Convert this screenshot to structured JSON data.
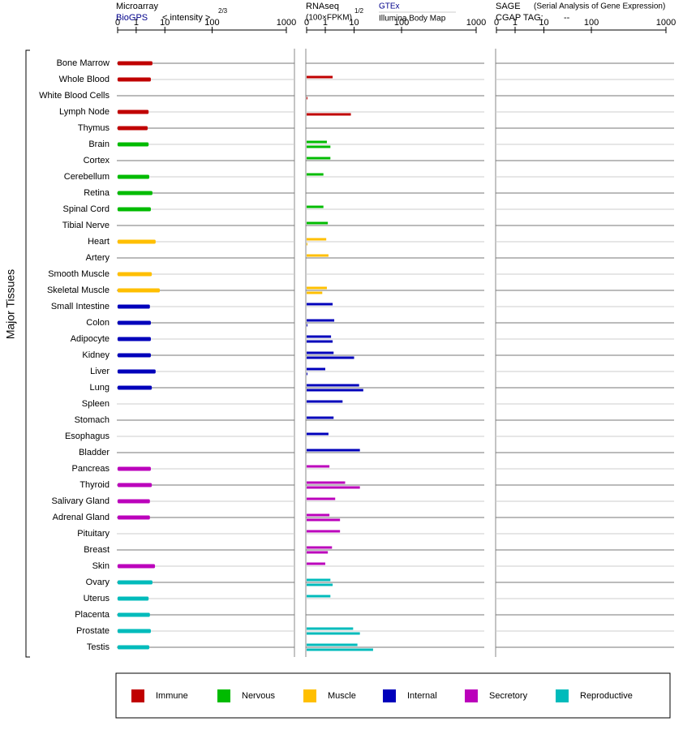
{
  "chart_data": [
    {
      "type": "bar",
      "title": "Microarray",
      "subtitle": "BioGPS",
      "axis_label": "< intensity >",
      "axis_label_power": "2/3",
      "ylabel": "Major Tissues",
      "categories": [
        "Bone Marrow",
        "Whole Blood",
        "White Blood Cells",
        "Lymph Node",
        "Thymus",
        "Brain",
        "Cortex",
        "Cerebellum",
        "Retina",
        "Spinal Cord",
        "Tibial Nerve",
        "Heart",
        "Artery",
        "Smooth Muscle",
        "Skeletal Muscle",
        "Small Intestine",
        "Colon",
        "Adipocyte",
        "Kidney",
        "Liver",
        "Lung",
        "Spleen",
        "Stomach",
        "Esophagus",
        "Bladder",
        "Pancreas",
        "Thyroid",
        "Salivary Gland",
        "Adrenal Gland",
        "Pituitary",
        "Breast",
        "Skin",
        "Ovary",
        "Uterus",
        "Placenta",
        "Prostate",
        "Testis"
      ],
      "colors": [
        "#c00000",
        "#c00000",
        "#c00000",
        "#c00000",
        "#c00000",
        "#00bb00",
        "#00bb00",
        "#00bb00",
        "#00bb00",
        "#00bb00",
        "#00bb00",
        "#ffbf00",
        "#ffbf00",
        "#ffbf00",
        "#ffbf00",
        "#0000bb",
        "#0000bb",
        "#0000bb",
        "#0000bb",
        "#0000bb",
        "#0000bb",
        "#0000bb",
        "#0000bb",
        "#0000bb",
        "#0000bb",
        "#bb00bb",
        "#bb00bb",
        "#bb00bb",
        "#bb00bb",
        "#bb00bb",
        "#bb00bb",
        "#bb00bb",
        "#00bbbb",
        "#00bbbb",
        "#00bbbb",
        "#00bbbb",
        "#00bbbb"
      ],
      "xlim": [
        0,
        1000
      ],
      "xticks": [
        0,
        1,
        10,
        100,
        1000
      ],
      "series": [
        {
          "name": "BioGPS",
          "values": [
            6.1,
            5.6,
            null,
            4.9,
            4.6,
            4.9,
            null,
            5.1,
            6.1,
            5.6,
            null,
            7.1,
            null,
            5.9,
            8.4,
            5.3,
            5.6,
            5.6,
            5.6,
            7.1,
            5.9,
            null,
            null,
            null,
            null,
            5.6,
            5.9,
            5.3,
            5.3,
            null,
            null,
            6.9,
            6.1,
            4.9,
            5.3,
            5.6,
            5.1
          ]
        }
      ]
    },
    {
      "type": "bar",
      "title": "RNAseq",
      "axis_label": "(100×FPKM)",
      "axis_label_power": "1/2",
      "xlim": [
        0,
        1000
      ],
      "xticks": [
        0,
        1,
        10,
        100,
        1000
      ],
      "series": [
        {
          "name": "GTEx",
          "values": [
            null,
            3.3,
            null,
            null,
            null,
            1.5,
            2.6,
            0.9,
            null,
            0.9,
            1.8,
            1.3,
            2.0,
            null,
            1.5,
            3.3,
            3.8,
            2.8,
            3.6,
            1.0,
            19.5,
            6.4,
            3.6,
            2.0,
            21,
            2.3,
            7.2,
            4.1,
            2.3,
            5.6,
            3.1,
            1.0,
            2.6,
            2.6,
            null,
            9.7,
            16.3
          ]
        },
        {
          "name": "Illumina Body Map",
          "values": [
            null,
            null,
            0.04,
            9,
            null,
            2.6,
            null,
            null,
            null,
            null,
            null,
            0.04,
            null,
            null,
            0.84,
            null,
            0.04,
            3.3,
            10,
            0.04,
            27.4,
            null,
            null,
            null,
            null,
            null,
            21,
            null,
            5.6,
            null,
            1.8,
            null,
            3.3,
            null,
            null,
            21,
            46
          ]
        }
      ]
    },
    {
      "type": "bar",
      "title": "SAGE",
      "subtitle": "(Serial Analysis of Gene Expression)",
      "tag_label": "CGAP TAG:",
      "tag": "--",
      "xlim": [
        0,
        1000
      ],
      "xticks": [
        0,
        1,
        10,
        100,
        1000
      ],
      "series": []
    }
  ],
  "legend": [
    {
      "name": "Immune",
      "color": "#c00000"
    },
    {
      "name": "Nervous",
      "color": "#00bb00"
    },
    {
      "name": "Muscle",
      "color": "#ffbf00"
    },
    {
      "name": "Internal",
      "color": "#0000bb"
    },
    {
      "name": "Secretory",
      "color": "#bb00bb"
    },
    {
      "name": "Reproductive",
      "color": "#00bbbb"
    }
  ]
}
